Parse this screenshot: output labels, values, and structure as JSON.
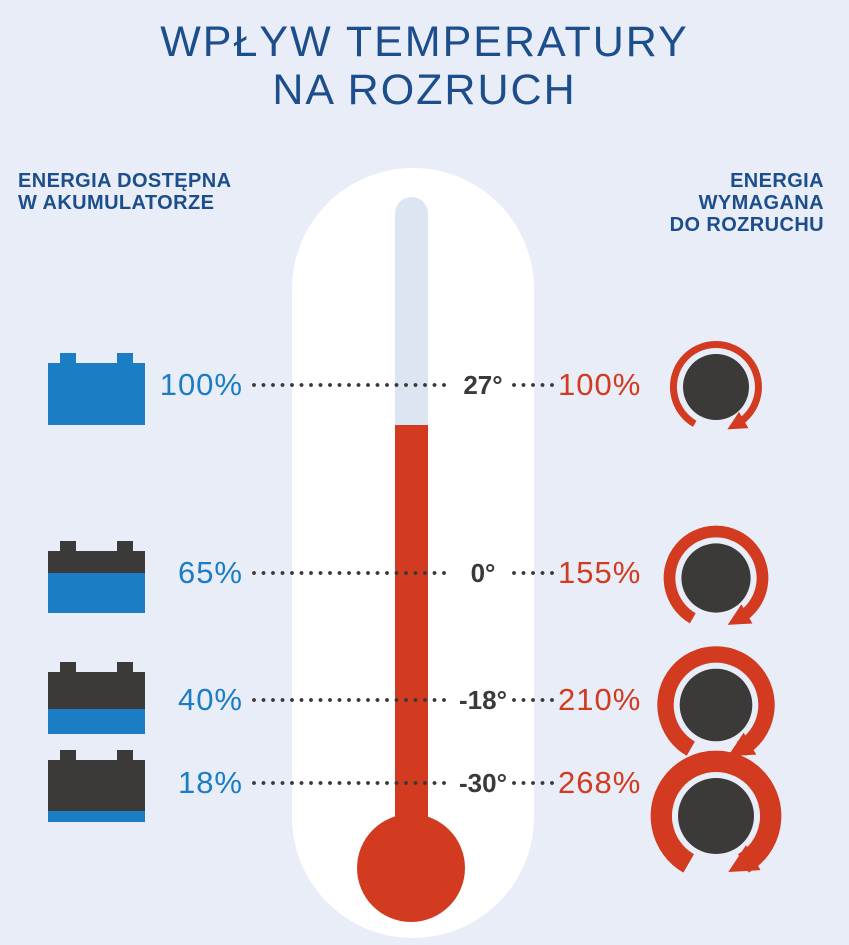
{
  "title": {
    "line1": "WPŁYW TEMPERATURY",
    "line2": "NA ROZRUCH"
  },
  "left_header": {
    "line1": "ENERGIA DOSTĘPNA",
    "line2": "W AKUMULATORZE"
  },
  "right_header": {
    "line1": "ENERGIA",
    "line2": "WYMAGANA",
    "line3": "DO ROZRUCHU"
  },
  "rows": [
    {
      "temperature": "27°",
      "available_label": "100%",
      "available_pct": 100,
      "required_label": "100%",
      "required_pct": 100
    },
    {
      "temperature": "0°",
      "available_label": "65%",
      "available_pct": 65,
      "required_label": "155%",
      "required_pct": 155
    },
    {
      "temperature": "-18°",
      "available_label": "40%",
      "available_pct": 40,
      "required_label": "210%",
      "required_pct": 210
    },
    {
      "temperature": "-30°",
      "available_label": "18%",
      "available_pct": 18,
      "required_label": "268%",
      "required_pct": 268
    }
  ],
  "icons": {
    "battery": "battery-icon",
    "dial": "dial-gauge-icon",
    "thermometer": "thermometer-icon"
  },
  "colors": {
    "background": "#e8edf7",
    "navy": "#1d4e8c",
    "blue": "#1b7dc3",
    "red": "#d23b20",
    "dark": "#3c3939",
    "channel": "#dce5f2",
    "white": "#ffffff"
  }
}
